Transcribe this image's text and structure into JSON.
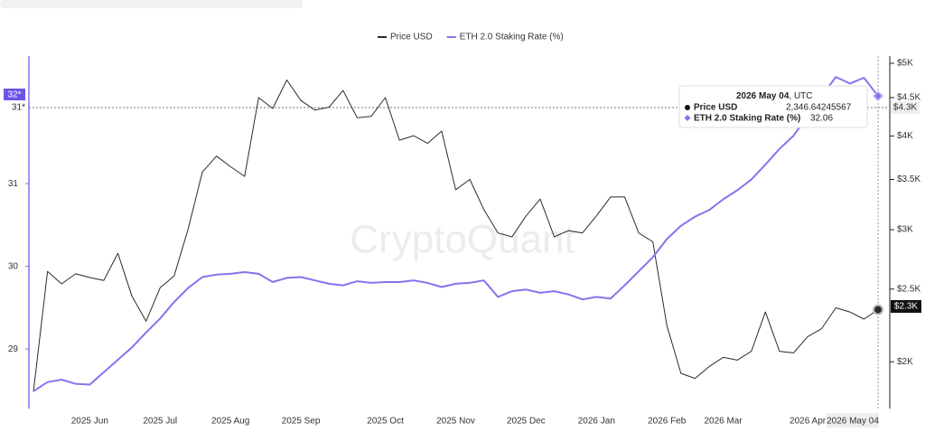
{
  "chart_data": {
    "type": "line",
    "legend": "top",
    "watermark": "CryptoQuant",
    "categories": [
      null,
      null,
      null,
      null,
      "2025 Jun",
      null,
      null,
      null,
      null,
      "2025 Jul",
      null,
      null,
      null,
      null,
      "2025 Aug",
      null,
      null,
      null,
      null,
      "2025 Sep",
      null,
      null,
      null,
      null,
      null,
      "2025 Oct",
      null,
      null,
      null,
      null,
      "2025 Nov",
      null,
      null,
      null,
      null,
      "2025 Dec",
      null,
      null,
      null,
      null,
      "2026 Jan",
      null,
      null,
      null,
      null,
      "2026 Feb",
      null,
      null,
      null,
      "2026 Mar",
      null,
      null,
      null,
      null,
      null,
      "2026 Apr",
      null,
      null,
      null,
      null,
      "2026 May 04"
    ],
    "series": [
      {
        "name": "Price USD",
        "color": "#2b2b2b",
        "axis": "y2",
        "values": [
          1824,
          2639,
          2540,
          2620,
          2590,
          2567,
          2790,
          2445,
          2265,
          2510,
          2603,
          3010,
          3580,
          3760,
          3640,
          3533,
          4500,
          4352,
          4750,
          4460,
          4330,
          4370,
          4600,
          4231,
          4250,
          4500,
          3948,
          4004,
          3910,
          4060,
          3390,
          3500,
          3190,
          2970,
          2935,
          3130,
          3296,
          2935,
          2991,
          2970,
          3130,
          3317,
          3317,
          2970,
          2890,
          2234,
          1930,
          1900,
          1970,
          2027,
          2010,
          2065,
          2330,
          2065,
          2055,
          2160,
          2215,
          2360,
          2330,
          2280,
          2346.64245567
        ]
      },
      {
        "name": "ETH 2.0 Staking Rate (%)",
        "color": "#8474ee",
        "values": [
          28.49,
          28.6,
          28.63,
          28.58,
          28.57,
          28.72,
          28.87,
          29.02,
          29.2,
          29.37,
          29.57,
          29.74,
          29.87,
          29.9,
          29.91,
          29.93,
          29.91,
          29.81,
          29.86,
          29.87,
          29.83,
          29.79,
          29.77,
          29.82,
          29.8,
          29.81,
          29.81,
          29.83,
          29.8,
          29.75,
          29.79,
          29.8,
          29.83,
          29.63,
          29.7,
          29.72,
          29.68,
          29.7,
          29.66,
          29.6,
          29.63,
          29.61,
          29.77,
          29.94,
          30.11,
          30.33,
          30.49,
          30.6,
          30.68,
          30.81,
          30.92,
          31.05,
          31.23,
          31.42,
          31.58,
          31.82,
          32.06,
          32.29,
          32.21,
          32.28,
          32.06
        ]
      }
    ],
    "ylim": [
      28.28,
      32.51
    ],
    "yticks": [
      29,
      30,
      31
    ],
    "y2lim": [
      1732,
      5070
    ],
    "y2_scale": "log",
    "y2ticks": [
      {
        "value": 2000,
        "label": "$2K"
      },
      {
        "value": 2500,
        "label": "$2.5K"
      },
      {
        "value": 3000,
        "label": "$3K"
      },
      {
        "value": 3500,
        "label": "$3.5K"
      },
      {
        "value": 4000,
        "label": "$4K"
      },
      {
        "value": 4500,
        "label": "$4.5K"
      },
      {
        "value": 5000,
        "label": "$5K"
      }
    ],
    "grid": false,
    "crosshair": {
      "left_label": "31*",
      "right_label": "$4.3K",
      "hover_left_label": "32*",
      "hover_right_label": "$2.3K"
    },
    "tooltip": {
      "date": "2026 May 04",
      "zone": ", UTC",
      "rows": [
        {
          "name": "Price USD",
          "value": "2,346.64245567"
        },
        {
          "name": "ETH 2.0 Staking Rate (%)",
          "value": "32.06"
        }
      ]
    }
  }
}
